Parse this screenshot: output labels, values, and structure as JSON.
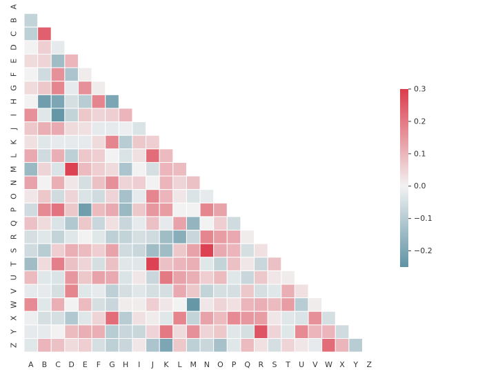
{
  "chart_data": {
    "type": "heatmap",
    "title": "",
    "xlabel": "",
    "ylabel": "",
    "x_labels": [
      "A",
      "B",
      "C",
      "D",
      "E",
      "F",
      "G",
      "H",
      "I",
      "J",
      "K",
      "L",
      "M",
      "N",
      "O",
      "P",
      "Q",
      "R",
      "S",
      "T",
      "U",
      "V",
      "W",
      "X",
      "Y",
      "Z"
    ],
    "y_labels": [
      "A",
      "B",
      "C",
      "D",
      "E",
      "F",
      "G",
      "H",
      "I",
      "J",
      "K",
      "L",
      "M",
      "N",
      "O",
      "P",
      "Q",
      "R",
      "S",
      "T",
      "U",
      "V",
      "W",
      "X",
      "Y",
      "Z"
    ],
    "mask": "upper-triangle (lower triangle shown, diagonal hidden)",
    "value_range": [
      -0.25,
      0.3
    ],
    "colorbar": {
      "ticks": [
        0.3,
        0.2,
        0.1,
        0.0,
        -0.1,
        -0.2
      ],
      "tick_labels": [
        "0.3",
        "0.2",
        "0.1",
        "0.0",
        "−0.1",
        "−0.2"
      ]
    },
    "colors": {
      "negative": "#5f93a4",
      "center": "#f2f2f2",
      "positive": "#dc3c4c"
    },
    "values": [
      [],
      [
        -0.08
      ],
      [
        -0.09,
        0.24
      ],
      [
        0.0,
        0.06,
        -0.02
      ],
      [
        0.04,
        0.05,
        -0.14,
        0.1
      ],
      [
        0.0,
        -0.06,
        0.16,
        -0.12,
        0.01
      ],
      [
        0.04,
        0.07,
        0.18,
        -0.02,
        0.16,
        0.01
      ],
      [
        0.0,
        -0.22,
        -0.2,
        -0.05,
        -0.1,
        0.18,
        -0.2
      ],
      [
        0.16,
        -0.03,
        -0.24,
        -0.08,
        0.07,
        0.05,
        0.06,
        0.1
      ],
      [
        0.07,
        0.11,
        0.12,
        0.04,
        0.03,
        -0.02,
        -0.02,
        -0.01,
        -0.04
      ],
      [
        0.03,
        -0.03,
        -0.02,
        -0.02,
        -0.02,
        0.04,
        0.18,
        -0.1,
        0.07,
        0.06
      ],
      [
        0.12,
        -0.06,
        0.11,
        -0.09,
        0.07,
        0.06,
        0.0,
        -0.04,
        0.03,
        0.22,
        0.09
      ],
      [
        -0.15,
        0.05,
        -0.04,
        0.29,
        0.09,
        0.06,
        0.04,
        -0.12,
        0.0,
        -0.05,
        0.1,
        0.09
      ],
      [
        0.13,
        0.0,
        0.11,
        0.02,
        -0.05,
        0.08,
        0.16,
        0.05,
        0.06,
        0.0,
        0.1,
        0.05,
        0.08
      ],
      [
        0.02,
        0.07,
        -0.06,
        0.05,
        -0.04,
        -0.06,
        0.05,
        -0.13,
        -0.02,
        0.18,
        0.1,
        0.02,
        -0.04,
        -0.02
      ],
      [
        -0.06,
        0.17,
        0.21,
        0.07,
        -0.22,
        0.09,
        0.12,
        -0.15,
        0.07,
        0.15,
        0.14,
        0.0,
        0.0,
        0.18,
        0.13
      ],
      [
        0.08,
        0.04,
        -0.04,
        -0.11,
        0.07,
        -0.07,
        0.03,
        -0.07,
        -0.02,
        0.08,
        -0.02,
        0.13,
        -0.16,
        0.0,
        0.06,
        -0.06
      ],
      [
        -0.05,
        -0.03,
        -0.08,
        -0.03,
        0.0,
        -0.03,
        -0.09,
        -0.08,
        -0.05,
        -0.06,
        -0.14,
        -0.18,
        -0.07,
        0.18,
        0.14,
        0.12,
        0.01
      ],
      [
        -0.06,
        -0.1,
        0.06,
        0.11,
        0.09,
        0.06,
        0.13,
        -0.06,
        -0.07,
        -0.14,
        -0.14,
        0.07,
        0.13,
        0.29,
        0.12,
        0.1,
        -0.05,
        0.03
      ],
      [
        -0.14,
        0.04,
        0.19,
        0.08,
        0.05,
        -0.05,
        0.08,
        -0.03,
        -0.03,
        0.29,
        0.08,
        0.1,
        0.11,
        -0.03,
        -0.08,
        0.08,
        0.02,
        -0.07,
        0.08
      ],
      [
        0.09,
        -0.03,
        -0.04,
        0.15,
        0.07,
        0.13,
        0.12,
        -0.04,
        0.02,
        -0.07,
        0.2,
        0.13,
        0.11,
        0.06,
        0.09,
        -0.03,
        -0.07,
        0.07,
        0.02,
        0.01
      ],
      [
        -0.02,
        -0.02,
        -0.05,
        0.18,
        -0.03,
        -0.02,
        -0.09,
        -0.05,
        -0.03,
        -0.05,
        -0.05,
        0.12,
        0.07,
        -0.08,
        -0.05,
        -0.05,
        0.07,
        -0.05,
        -0.03,
        0.11,
        0.03
      ],
      [
        0.17,
        -0.03,
        0.11,
        0.0,
        0.09,
        -0.05,
        -0.07,
        0.01,
        0.01,
        0.06,
        0.02,
        0.0,
        -0.24,
        0.02,
        0.05,
        0.03,
        0.1,
        0.11,
        0.09,
        0.14,
        -0.1,
        0.01
      ],
      [
        -0.01,
        -0.05,
        -0.05,
        -0.11,
        -0.03,
        0.05,
        0.22,
        -0.1,
        0.03,
        0.01,
        -0.03,
        0.18,
        -0.08,
        0.13,
        0.09,
        0.17,
        0.15,
        0.14,
        0.02,
        -0.03,
        -0.04,
        0.16,
        -0.05
      ],
      [
        -0.02,
        -0.02,
        0.0,
        0.09,
        0.11,
        0.11,
        -0.1,
        -0.07,
        -0.07,
        0.05,
        0.2,
        0.04,
        0.16,
        0.05,
        0.07,
        -0.03,
        -0.05,
        0.26,
        0.05,
        -0.03,
        0.17,
        0.1,
        0.1,
        -0.06
      ],
      [
        -0.03,
        0.1,
        0.08,
        0.04,
        0.06,
        -0.05,
        -0.09,
        -0.07,
        0.02,
        -0.12,
        -0.2,
        0.07,
        -0.09,
        -0.07,
        -0.13,
        -0.03,
        0.09,
        0.03,
        -0.05,
        0.05,
        0.02,
        -0.02,
        0.22,
        0.1,
        -0.1
      ]
    ]
  }
}
